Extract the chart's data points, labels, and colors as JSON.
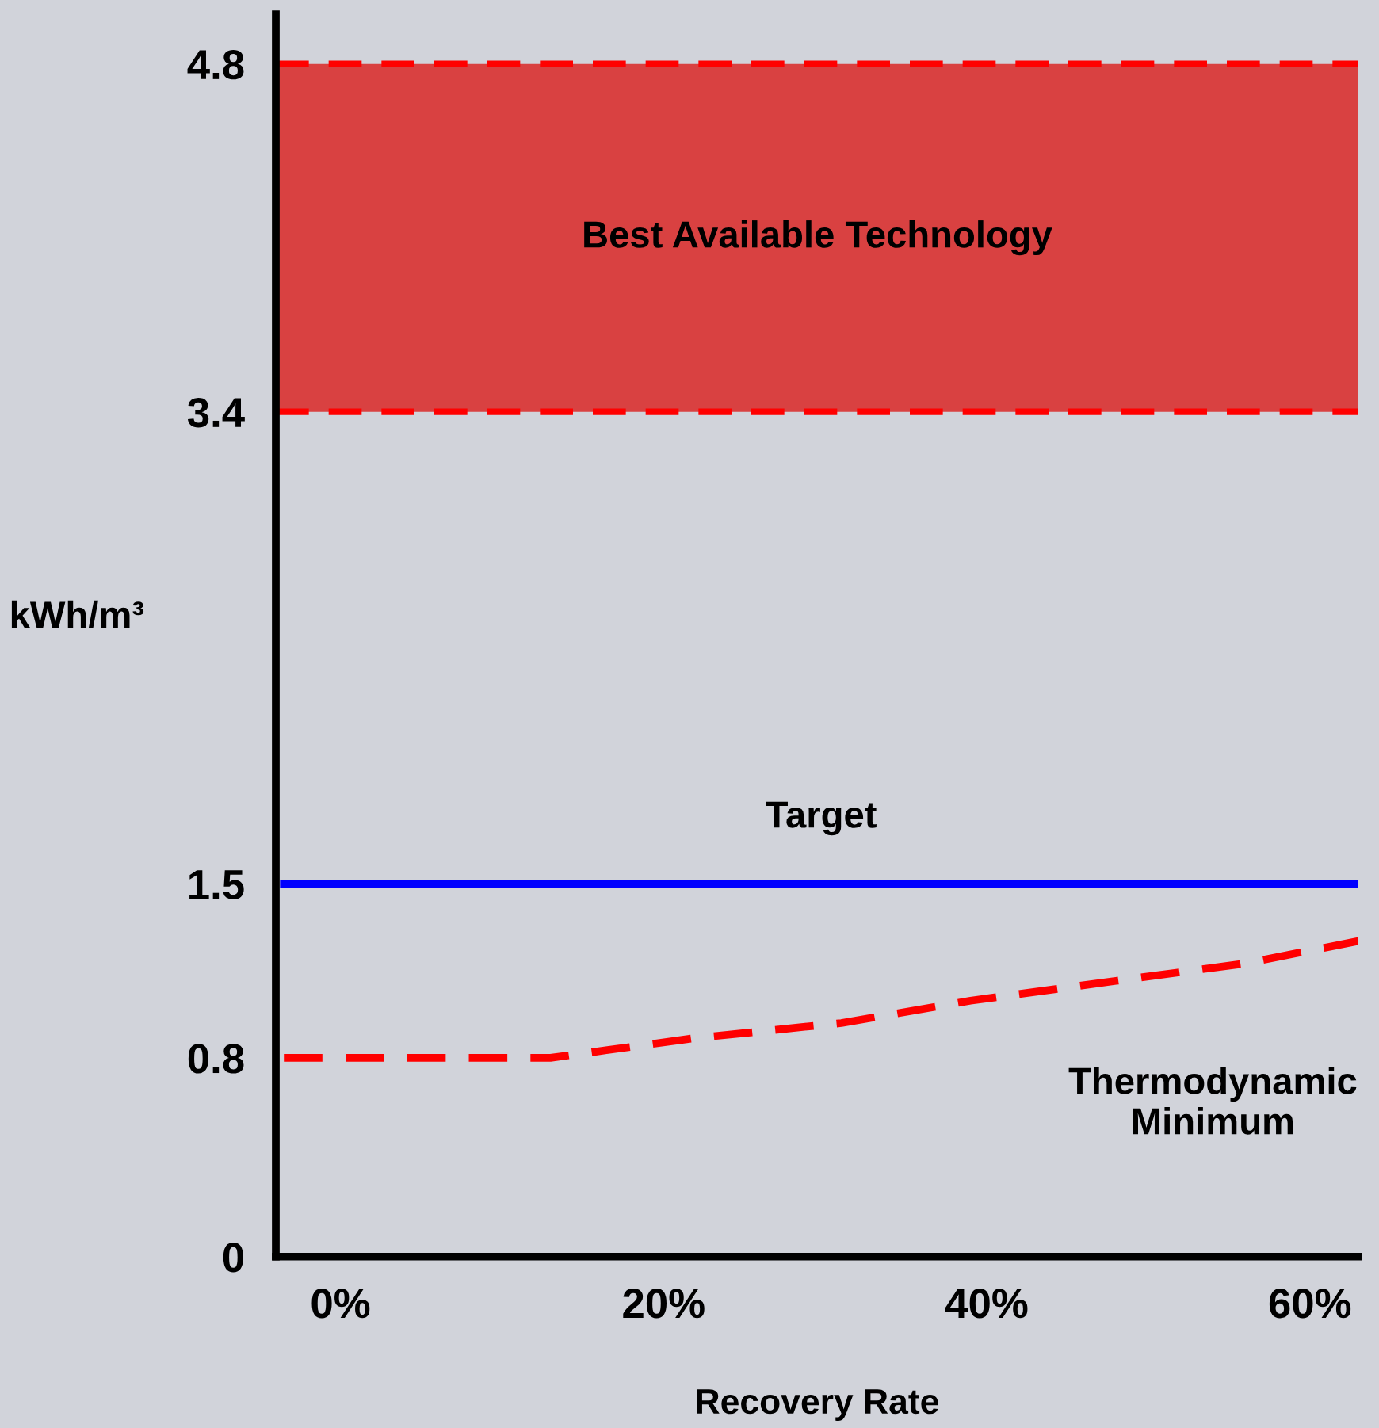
{
  "chart_data": {
    "type": "line",
    "xlabel": "Recovery Rate",
    "ylabel": "kWh/m³",
    "xlim": [
      -4,
      63
    ],
    "xticks": [
      {
        "value": 0,
        "label": "0%"
      },
      {
        "value": 20,
        "label": "20%"
      },
      {
        "value": 40,
        "label": "40%"
      },
      {
        "value": 60,
        "label": "60%"
      }
    ],
    "ylim": [
      0,
      5
    ],
    "yticks": [
      0,
      0.8,
      1.5,
      3.4,
      4.8
    ],
    "series": [
      {
        "name": "Target",
        "color": "#0000ff",
        "line_style": "solid",
        "x": [
          -3.5,
          63
        ],
        "values": [
          1.5,
          1.5
        ]
      },
      {
        "name": "Thermodynamic Minimum",
        "color": "#ff0000",
        "line_style": "dashed",
        "x": [
          -3.5,
          13,
          22,
          31,
          39,
          48,
          56,
          63
        ],
        "values": [
          0.8,
          0.8,
          0.88,
          0.94,
          1.03,
          1.11,
          1.18,
          1.27
        ]
      }
    ],
    "bands": [
      {
        "axis": "y",
        "from": 3.4,
        "to": 4.8,
        "label": "Best Available Technology",
        "color": "#d94141"
      }
    ],
    "ref_lines": [
      {
        "axis": "y",
        "value": 3.4,
        "label": null,
        "color": "#ff0000",
        "line_style": "dashed"
      },
      {
        "axis": "y",
        "value": 4.8,
        "label": null,
        "color": "#ff0000",
        "line_style": "dashed"
      }
    ],
    "grid": false,
    "legend": false,
    "marker": "none"
  }
}
